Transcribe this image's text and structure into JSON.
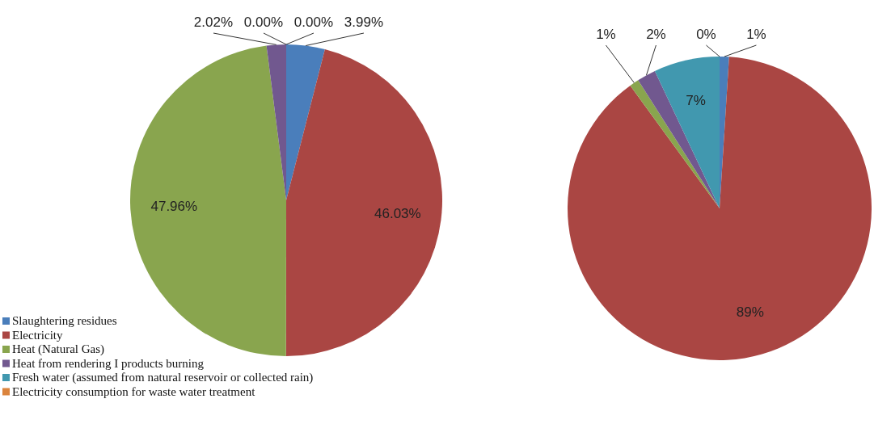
{
  "chart_data": [
    {
      "type": "pie",
      "categories": [
        "Slaughtering residues",
        "Electricity",
        "Heat (Natural Gas)",
        "Heat from rendering I products burning",
        "Fresh water  (assumed from natural reservoir or collected rain)",
        "Electricity consumption for waste water treatment"
      ],
      "values": [
        3.99,
        46.03,
        47.96,
        2.02,
        0.0,
        0.0
      ],
      "colors": [
        "#4a7ebb",
        "#aa4643",
        "#89a54e",
        "#71588f",
        "#4198af",
        "#db843d"
      ],
      "value_labels": [
        "3.99%",
        "46.03%",
        "47.96%",
        "2.02%",
        "0.00%",
        "0.00%"
      ],
      "legend": "bottom left"
    },
    {
      "type": "pie",
      "categories": [
        null,
        null,
        null,
        null,
        null,
        null
      ],
      "values": [
        1,
        89,
        1,
        2,
        7,
        0
      ],
      "colors": [
        "#4a7ebb",
        "#aa4643",
        "#89a54e",
        "#71588f",
        "#4198af",
        "#db843d"
      ],
      "value_labels": [
        "1%",
        "89%",
        "1%",
        "2%",
        "7%",
        "0%"
      ],
      "legend": false
    }
  ]
}
